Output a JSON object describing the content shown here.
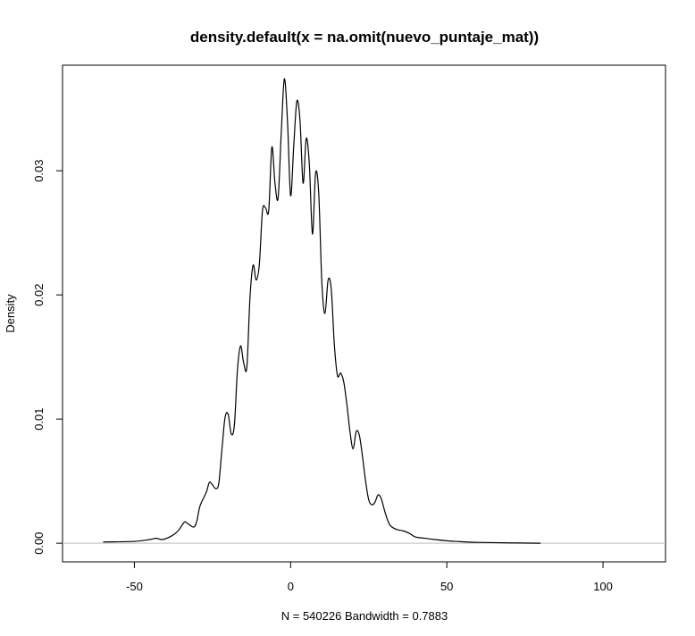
{
  "chart_data": {
    "type": "line",
    "title": "density.default(x = na.omit(nuevo_puntaje_mat))",
    "xlabel": "N = 540226   Bandwidth = 0.7883",
    "ylabel": "Density",
    "xlim": [
      -73,
      120
    ],
    "ylim": [
      -0.0015,
      0.0385
    ],
    "x_ticks": [
      -50,
      0,
      50,
      100
    ],
    "x_tick_labels": [
      "-50",
      "0",
      "50",
      "100"
    ],
    "y_ticks": [
      0.0,
      0.01,
      0.02,
      0.03
    ],
    "y_tick_labels": [
      "0.00",
      "0.01",
      "0.02",
      "0.03"
    ],
    "baseline": 0,
    "baseline_color": "#bebebe",
    "line_color": "#000000",
    "grid": false,
    "series": [
      {
        "x": [
          -60,
          -50,
          -45,
          -43,
          -41,
          -38,
          -36,
          -34,
          -33,
          -31,
          -30,
          -29,
          -27,
          -26,
          -25,
          -24,
          -23,
          -22,
          -21,
          -20,
          -19,
          -18,
          -17,
          -16,
          -15,
          -14,
          -13,
          -12,
          -11,
          -10,
          -9,
          -8,
          -7,
          -6,
          -5,
          -4,
          -3,
          -2,
          -1,
          0,
          1,
          2,
          3,
          4,
          5,
          6,
          7,
          8,
          9,
          10,
          11,
          12,
          13,
          14,
          15,
          16,
          17,
          18,
          19,
          20,
          21,
          22,
          23,
          24,
          25,
          26,
          27,
          28,
          29,
          30,
          31,
          32,
          34,
          36,
          38,
          40,
          43,
          46,
          50,
          55,
          60,
          70,
          80
        ],
        "y": [
          0.0001,
          0.00015,
          0.0003,
          0.0004,
          0.0003,
          0.0006,
          0.001,
          0.0017,
          0.0016,
          0.0013,
          0.0018,
          0.003,
          0.0041,
          0.0049,
          0.0047,
          0.0044,
          0.0048,
          0.0075,
          0.0101,
          0.0104,
          0.0088,
          0.0095,
          0.014,
          0.0159,
          0.0145,
          0.0142,
          0.0198,
          0.0224,
          0.0212,
          0.0225,
          0.0268,
          0.027,
          0.0268,
          0.0319,
          0.029,
          0.0278,
          0.033,
          0.0374,
          0.034,
          0.028,
          0.032,
          0.0356,
          0.0341,
          0.029,
          0.0326,
          0.0305,
          0.0249,
          0.0298,
          0.0282,
          0.021,
          0.0185,
          0.0212,
          0.0205,
          0.016,
          0.0135,
          0.0137,
          0.013,
          0.0112,
          0.009,
          0.0076,
          0.009,
          0.0087,
          0.007,
          0.005,
          0.0035,
          0.0031,
          0.0033,
          0.0039,
          0.0036,
          0.0027,
          0.0019,
          0.0014,
          0.0011,
          0.001,
          0.0008,
          0.0005,
          0.0004,
          0.0003,
          0.0002,
          0.00012,
          7e-05,
          3e-05,
          0.0
        ]
      }
    ]
  }
}
